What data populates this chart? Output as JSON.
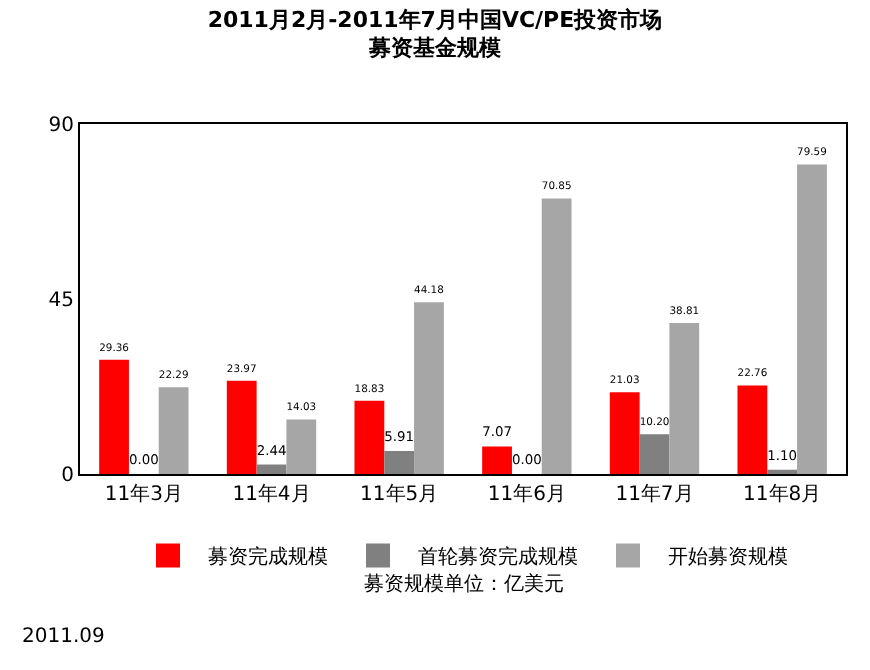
{
  "chart_data": {
    "type": "bar",
    "title": "2011月2月-2011年7月中国VC/PE投资市场",
    "subtitle": "募资基金规模",
    "categories": [
      "11年3月",
      "11年4月",
      "11年5月",
      "11年6月",
      "11年7月",
      "11年8月"
    ],
    "series": [
      {
        "name": "募资完成规模",
        "color": "#ff0000",
        "values": [
          29.36,
          23.97,
          18.83,
          7.07,
          21.03,
          22.76
        ],
        "value_labels": [
          "29.36",
          "23.97",
          "18.83",
          "7.07",
          "21.03",
          "22.76"
        ]
      },
      {
        "name": "首轮募资完成规模",
        "color": "#808080",
        "values": [
          0.0,
          2.44,
          5.91,
          0.0,
          10.2,
          1.1
        ],
        "value_labels": [
          "0.00",
          "2.44",
          "5.91",
          "0.00",
          "10.20",
          "1.10"
        ]
      },
      {
        "name": "开始募资规模",
        "color": "#a6a6a6",
        "values": [
          22.29,
          14.03,
          44.18,
          70.85,
          38.81,
          79.59
        ],
        "value_labels": [
          "22.29",
          "14.03",
          "44.18",
          "70.85",
          "38.81",
          "79.59"
        ]
      }
    ],
    "ylim": [
      0,
      90
    ],
    "yticks": [
      0,
      45,
      90
    ],
    "legend": "bottom",
    "annotations": [
      "募资规模单位：亿美元",
      "2011.09"
    ]
  }
}
